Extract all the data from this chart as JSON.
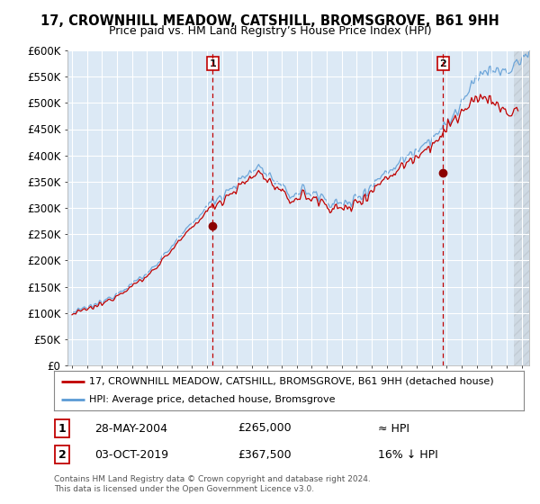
{
  "title": "17, CROWNHILL MEADOW, CATSHILL, BROMSGROVE, B61 9HH",
  "subtitle": "Price paid vs. HM Land Registry’s House Price Index (HPI)",
  "background_color": "#dce9f5",
  "ylim": [
    0,
    600000
  ],
  "yticks": [
    0,
    50000,
    100000,
    150000,
    200000,
    250000,
    300000,
    350000,
    400000,
    450000,
    500000,
    550000,
    600000
  ],
  "ytick_labels": [
    "£0",
    "£50K",
    "£100K",
    "£150K",
    "£200K",
    "£250K",
    "£300K",
    "£350K",
    "£400K",
    "£450K",
    "£500K",
    "£550K",
    "£600K"
  ],
  "sale1_date_x": 2004.38,
  "sale1_price": 265000,
  "sale1_label": "1",
  "sale2_date_x": 2019.75,
  "sale2_price": 367500,
  "sale2_label": "2",
  "legend_line1": "17, CROWNHILL MEADOW, CATSHILL, BROMSGROVE, B61 9HH (detached house)",
  "legend_line2": "HPI: Average price, detached house, Bromsgrove",
  "table_row1": [
    "1",
    "28-MAY-2004",
    "£265,000",
    "≈ HPI"
  ],
  "table_row2": [
    "2",
    "03-OCT-2019",
    "£367,500",
    "16% ↓ HPI"
  ],
  "footnote": "Contains HM Land Registry data © Crown copyright and database right 2024.\nThis data is licensed under the Open Government Licence v3.0.",
  "hpi_color": "#5b9bd5",
  "sold_color": "#c00000",
  "marker_color": "#8b0000",
  "dashed_color": "#c00000",
  "xmin": 1995.0,
  "xmax": 2025.5
}
